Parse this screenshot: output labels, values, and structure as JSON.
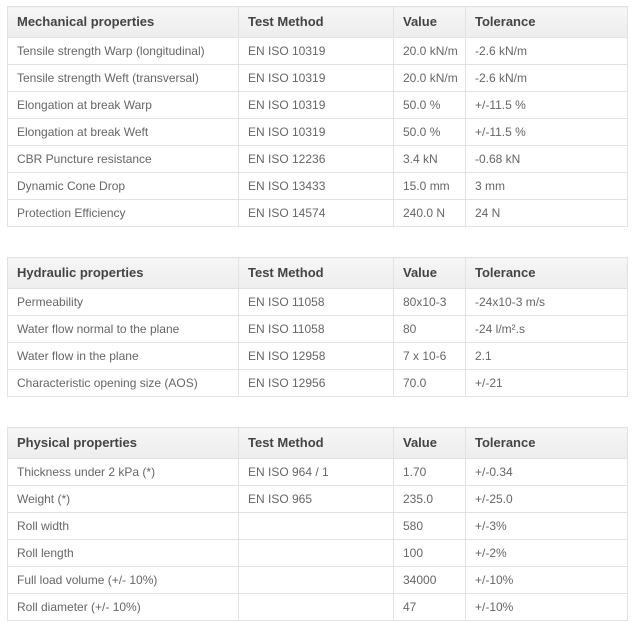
{
  "colors": {
    "header_bg": "#f1f1f1",
    "header_text": "#444444",
    "cell_text": "#666666",
    "border": "#e2e2e2",
    "page_bg": "#ffffff"
  },
  "column_roles": [
    "property-name",
    "test-method",
    "value",
    "tolerance"
  ],
  "tables": [
    {
      "id": "mechanical-properties",
      "header": [
        "Mechanical properties",
        "Test Method",
        "Value",
        "Tolerance"
      ],
      "rows": [
        [
          "Tensile strength Warp (longitudinal)",
          "EN ISO 10319",
          "20.0 kN/m",
          "-2.6 kN/m"
        ],
        [
          "Tensile strength Weft (transversal)",
          "EN ISO 10319",
          "20.0 kN/m",
          "-2.6 kN/m"
        ],
        [
          "Elongation at break Warp",
          "EN ISO 10319",
          "50.0 %",
          "+/-11.5 %"
        ],
        [
          "Elongation at break Weft",
          "EN ISO 10319",
          "50.0 %",
          "+/-11.5 %"
        ],
        [
          "CBR Puncture resistance",
          "EN ISO 12236",
          "3.4 kN",
          "-0.68 kN"
        ],
        [
          "Dynamic Cone Drop",
          "EN ISO 13433",
          "15.0 mm",
          "3 mm"
        ],
        [
          "Protection Efficiency",
          "EN ISO 14574",
          "240.0 N",
          "24 N"
        ]
      ]
    },
    {
      "id": "hydraulic-properties",
      "header": [
        "Hydraulic properties",
        "Test Method",
        "Value",
        "Tolerance"
      ],
      "rows": [
        [
          "Permeability",
          "EN ISO 11058",
          "80x10-3",
          "-24x10-3 m/s"
        ],
        [
          "Water flow normal to the plane",
          "EN ISO 11058",
          "80",
          "-24 l/m².s"
        ],
        [
          "Water flow in the plane",
          "EN ISO 12958",
          "7 x 10-6",
          "2.1"
        ],
        [
          "Characteristic opening size (AOS)",
          "EN ISO 12956",
          "70.0",
          "+/-21"
        ]
      ]
    },
    {
      "id": "physical-properties",
      "header": [
        "Physical properties",
        "Test Method",
        "Value",
        "Tolerance"
      ],
      "rows": [
        [
          "Thickness under 2 kPa (*)",
          "EN ISO 964 / 1",
          "1.70",
          "+/-0.34"
        ],
        [
          "Weight (*)",
          "EN ISO 965",
          "235.0",
          "+/-25.0"
        ],
        [
          "Roll width",
          "",
          "580",
          "+/-3%"
        ],
        [
          "Roll length",
          "",
          "100",
          "+/-2%"
        ],
        [
          "Full load volume (+/- 10%)",
          "",
          "34000",
          "+/-10%"
        ],
        [
          "Roll diameter (+/- 10%)",
          "",
          "47",
          "+/-10%"
        ]
      ]
    }
  ]
}
